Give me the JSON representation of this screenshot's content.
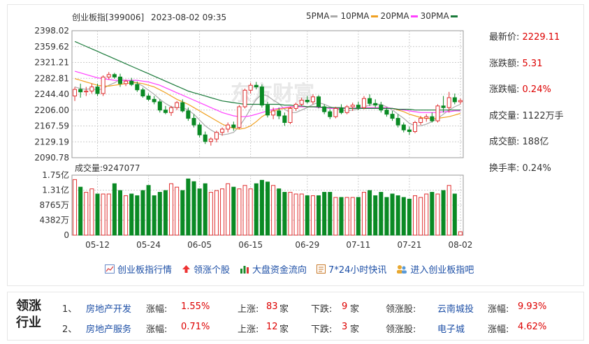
{
  "chart_data": [
    {
      "type": "candlestick",
      "title": "创业板指[399006]",
      "timestamp": "2023-08-02 09:35",
      "ylim": [
        2090.78,
        2398.02
      ],
      "y_ticks": [
        "2398.02",
        "2359.62",
        "2321.21",
        "2282.81",
        "2244.40",
        "2206.00",
        "2167.59",
        "2129.19",
        "2090.78"
      ],
      "x_ticks": [
        "05-12",
        "05-24",
        "06-05",
        "06-15",
        "06-29",
        "07-11",
        "07-21",
        "08-02"
      ],
      "legend": [
        {
          "name": "5PMA",
          "color": "#aaaaaa"
        },
        {
          "name": "10PMA",
          "color": "#f0a020"
        },
        {
          "name": "20PMA",
          "color": "#ff40ff"
        },
        {
          "name": "30PMA",
          "color": "#1a7a3a"
        }
      ],
      "ohlc": [
        [
          2240,
          2262,
          2228,
          2256
        ],
        [
          2256,
          2270,
          2236,
          2250
        ],
        [
          2250,
          2262,
          2240,
          2252
        ],
        [
          2252,
          2270,
          2246,
          2262
        ],
        [
          2262,
          2270,
          2240,
          2246
        ],
        [
          2246,
          2290,
          2240,
          2286
        ],
        [
          2286,
          2298,
          2280,
          2292
        ],
        [
          2292,
          2296,
          2282,
          2286
        ],
        [
          2286,
          2294,
          2262,
          2270
        ],
        [
          2270,
          2280,
          2264,
          2276
        ],
        [
          2276,
          2284,
          2264,
          2268
        ],
        [
          2268,
          2275,
          2250,
          2255
        ],
        [
          2255,
          2260,
          2236,
          2240
        ],
        [
          2240,
          2246,
          2228,
          2232
        ],
        [
          2232,
          2240,
          2220,
          2226
        ],
        [
          2226,
          2232,
          2200,
          2206
        ],
        [
          2206,
          2216,
          2196,
          2200
        ],
        [
          2200,
          2216,
          2192,
          2212
        ],
        [
          2212,
          2228,
          2206,
          2224
        ],
        [
          2224,
          2232,
          2200,
          2204
        ],
        [
          2204,
          2212,
          2180,
          2186
        ],
        [
          2186,
          2196,
          2164,
          2170
        ],
        [
          2170,
          2176,
          2140,
          2146
        ],
        [
          2146,
          2154,
          2124,
          2130
        ],
        [
          2130,
          2140,
          2120,
          2136
        ],
        [
          2136,
          2156,
          2128,
          2152
        ],
        [
          2152,
          2164,
          2144,
          2160
        ],
        [
          2160,
          2176,
          2152,
          2170
        ],
        [
          2170,
          2178,
          2156,
          2164
        ],
        [
          2164,
          2218,
          2160,
          2214
        ],
        [
          2214,
          2258,
          2210,
          2254
        ],
        [
          2254,
          2272,
          2246,
          2266
        ],
        [
          2266,
          2274,
          2256,
          2262
        ],
        [
          2262,
          2268,
          2212,
          2218
        ],
        [
          2218,
          2226,
          2188,
          2194
        ],
        [
          2194,
          2212,
          2184,
          2204
        ],
        [
          2204,
          2212,
          2184,
          2192
        ],
        [
          2192,
          2200,
          2168,
          2176
        ],
        [
          2176,
          2214,
          2172,
          2210
        ],
        [
          2210,
          2224,
          2204,
          2220
        ],
        [
          2220,
          2236,
          2216,
          2230
        ],
        [
          2230,
          2240,
          2222,
          2226
        ],
        [
          2226,
          2244,
          2220,
          2238
        ],
        [
          2238,
          2242,
          2210,
          2214
        ],
        [
          2214,
          2220,
          2196,
          2202
        ],
        [
          2202,
          2208,
          2184,
          2190
        ],
        [
          2190,
          2214,
          2186,
          2210
        ],
        [
          2210,
          2220,
          2196,
          2200
        ],
        [
          2200,
          2218,
          2196,
          2214
        ],
        [
          2214,
          2224,
          2204,
          2218
        ],
        [
          2218,
          2226,
          2206,
          2212
        ],
        [
          2212,
          2240,
          2208,
          2234
        ],
        [
          2234,
          2244,
          2216,
          2222
        ],
        [
          2222,
          2232,
          2212,
          2218
        ],
        [
          2218,
          2226,
          2200,
          2206
        ],
        [
          2206,
          2212,
          2190,
          2196
        ],
        [
          2196,
          2204,
          2180,
          2186
        ],
        [
          2186,
          2196,
          2164,
          2170
        ],
        [
          2170,
          2176,
          2152,
          2158
        ],
        [
          2158,
          2166,
          2146,
          2154
        ],
        [
          2154,
          2180,
          2150,
          2176
        ],
        [
          2176,
          2192,
          2170,
          2186
        ],
        [
          2186,
          2196,
          2178,
          2190
        ],
        [
          2190,
          2200,
          2176,
          2180
        ],
        [
          2180,
          2220,
          2176,
          2216
        ],
        [
          2216,
          2240,
          2200,
          2212
        ],
        [
          2212,
          2250,
          2200,
          2236
        ],
        [
          2236,
          2246,
          2220,
          2226
        ],
        [
          2226,
          2234,
          2220,
          2229
        ]
      ],
      "ma5": [
        2262,
        2258,
        2256,
        2258,
        2254,
        2258,
        2266,
        2272,
        2280,
        2278,
        2276,
        2272,
        2264,
        2254,
        2244,
        2232,
        2222,
        2214,
        2212,
        2212,
        2206,
        2196,
        2182,
        2168,
        2158,
        2150,
        2146,
        2148,
        2152,
        2166,
        2186,
        2210,
        2232,
        2244,
        2240,
        2230,
        2222,
        2208,
        2200,
        2200,
        2206,
        2212,
        2220,
        2224,
        2220,
        2214,
        2210,
        2206,
        2204,
        2206,
        2208,
        2214,
        2218,
        2220,
        2220,
        2214,
        2206,
        2196,
        2186,
        2174,
        2168,
        2168,
        2172,
        2178,
        2186,
        2196,
        2206,
        2214,
        2220
      ],
      "ma10": [
        2282,
        2278,
        2274,
        2270,
        2266,
        2264,
        2264,
        2266,
        2268,
        2270,
        2272,
        2272,
        2270,
        2266,
        2262,
        2255,
        2248,
        2240,
        2232,
        2226,
        2220,
        2212,
        2204,
        2196,
        2188,
        2180,
        2172,
        2166,
        2162,
        2160,
        2162,
        2168,
        2178,
        2190,
        2198,
        2204,
        2208,
        2210,
        2212,
        2214,
        2214,
        2214,
        2214,
        2214,
        2212,
        2210,
        2210,
        2210,
        2210,
        2210,
        2210,
        2210,
        2212,
        2212,
        2212,
        2212,
        2210,
        2206,
        2202,
        2196,
        2192,
        2188,
        2186,
        2186,
        2186,
        2188,
        2190,
        2194,
        2198
      ],
      "ma20": [
        2300,
        2296,
        2292,
        2288,
        2284,
        2282,
        2280,
        2278,
        2278,
        2278,
        2278,
        2278,
        2276,
        2274,
        2270,
        2266,
        2260,
        2254,
        2248,
        2242,
        2236,
        2230,
        2224,
        2218,
        2212,
        2206,
        2200,
        2196,
        2192,
        2190,
        2190,
        2192,
        2196,
        2200,
        2204,
        2208,
        2210,
        2212,
        2214,
        2214,
        2214,
        2214,
        2214,
        2212,
        2212,
        2210,
        2210,
        2210,
        2210,
        2210,
        2212,
        2212,
        2212,
        2212,
        2212,
        2212,
        2210,
        2208,
        2206,
        2204,
        2202,
        2200,
        2200,
        2200,
        2200,
        2202,
        2202,
        2204,
        2204
      ],
      "ma30": [
        2372,
        2366,
        2360,
        2354,
        2348,
        2342,
        2336,
        2330,
        2324,
        2318,
        2312,
        2306,
        2300,
        2294,
        2288,
        2282,
        2276,
        2270,
        2264,
        2258,
        2252,
        2248,
        2244,
        2240,
        2236,
        2232,
        2228,
        2226,
        2224,
        2222,
        2220,
        2220,
        2220,
        2220,
        2220,
        2220,
        2220,
        2218,
        2218,
        2216,
        2216,
        2214,
        2214,
        2214,
        2212,
        2212,
        2212,
        2212,
        2210,
        2210,
        2210,
        2210,
        2210,
        2210,
        2210,
        2210,
        2210,
        2208,
        2208,
        2208,
        2206,
        2206,
        2206,
        2206,
        2206,
        2206,
        2206,
        2206,
        2206
      ]
    },
    {
      "type": "bar",
      "title": "成交量:9247077",
      "y_ticks": [
        "1.75亿",
        "1.31亿",
        "8765万",
        "4382万",
        "0"
      ],
      "ylim": [
        0,
        17500
      ],
      "unit": "万",
      "values": [
        16200,
        14000,
        12500,
        13500,
        12000,
        12000,
        12000,
        15000,
        13000,
        11500,
        12000,
        11500,
        13000,
        14500,
        11500,
        12500,
        13000,
        15000,
        14000,
        13000,
        16400,
        15600,
        13500,
        15000,
        12500,
        13000,
        13500,
        15000,
        14000,
        13500,
        14500,
        13500,
        15000,
        16000,
        15500,
        14500,
        13500,
        12500,
        12500,
        12000,
        12000,
        11500,
        11500,
        11500,
        12500,
        12500,
        11000,
        11000,
        11000,
        11000,
        11000,
        12500,
        13000,
        11500,
        12500,
        11000,
        12000,
        11500,
        11000,
        10500,
        11500,
        11000,
        12000,
        12500,
        12000,
        13000,
        14500,
        12000,
        1000
      ]
    }
  ],
  "info": {
    "latest_label": "最新价:",
    "latest_value": "2229.11",
    "change_label": "涨跌额:",
    "change_value": "5.31",
    "pct_label": "涨跌幅:",
    "pct_value": "0.24%",
    "vol_label": "成交量:",
    "vol_value": "1122万手",
    "amount_label": "成交额:",
    "amount_value": "188亿",
    "turnover_label": "换手率:",
    "turnover_value": "0.24%"
  },
  "links": [
    "创业板指行情",
    "领涨个股",
    "大盘资金流向",
    "7*24小时快讯",
    "进入创业板指吧"
  ],
  "industry": {
    "title": "领涨行业",
    "rows": [
      {
        "rank": "1、",
        "name": "房地产开发",
        "pct_label": "涨幅:",
        "pct": "1.55%",
        "up_label": "上涨:",
        "up": "83",
        "down_label": "下跌:",
        "down": "9",
        "unit": "家",
        "lead_label": "领涨股:",
        "lead": "云南城投",
        "lead_pct_label": "涨幅:",
        "lead_pct": "9.93%"
      },
      {
        "rank": "2、",
        "name": "房地产服务",
        "pct_label": "涨幅:",
        "pct": "0.71%",
        "up_label": "上涨:",
        "up": "12",
        "down_label": "下跌:",
        "down": "3",
        "unit": "家",
        "lead_label": "领涨股:",
        "lead": "电子城",
        "lead_pct_label": "涨幅:",
        "lead_pct": "4.62%"
      }
    ]
  }
}
